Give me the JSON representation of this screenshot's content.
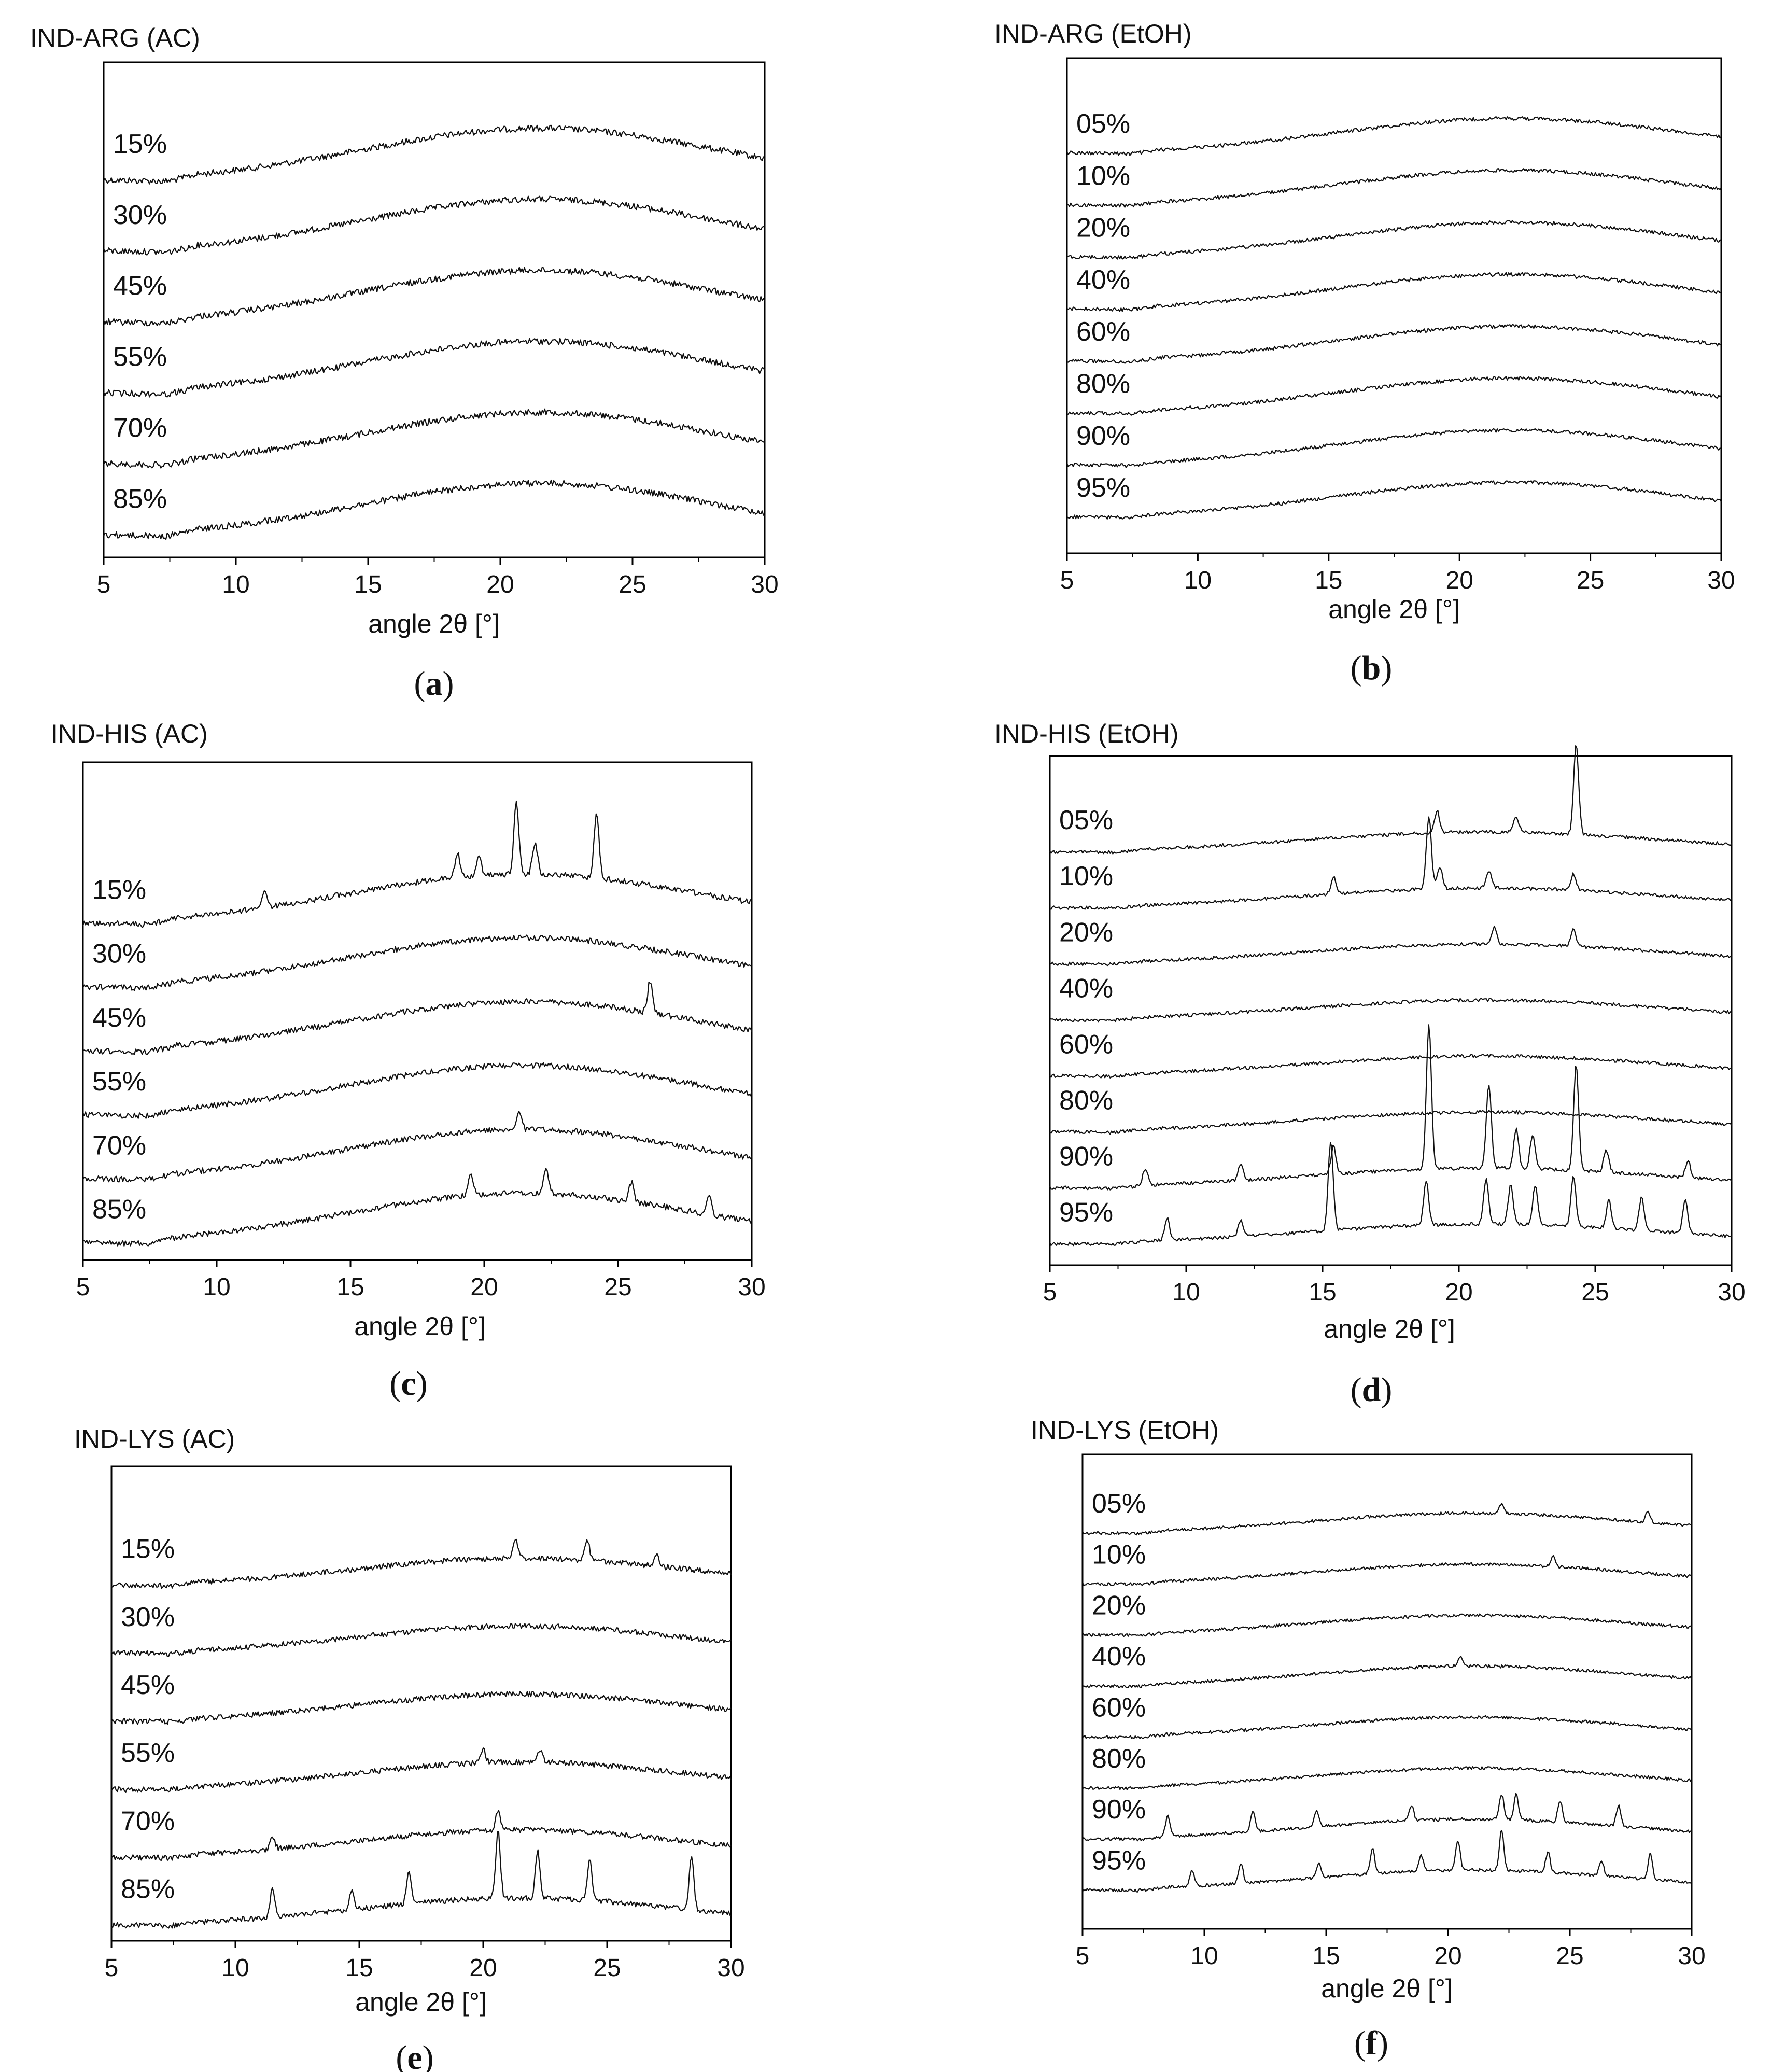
{
  "chart_data": [
    {
      "type": "line",
      "panel": "a",
      "caption": "(a)",
      "caption_letter": "a",
      "title": "IND-ARG (AC)",
      "xlabel": "angle 2θ [°]",
      "ylabel": "",
      "xlim": [
        5,
        30
      ],
      "xticks": [
        "5",
        "10",
        "15",
        "20",
        "25",
        "30"
      ],
      "curve_peak_2theta": 21.5,
      "series": [
        {
          "name": "15%",
          "peaks": []
        },
        {
          "name": "30%",
          "peaks": []
        },
        {
          "name": "45%",
          "peaks": []
        },
        {
          "name": "55%",
          "peaks": []
        },
        {
          "name": "70%",
          "peaks": []
        },
        {
          "name": "85%",
          "peaks": []
        }
      ]
    },
    {
      "type": "line",
      "panel": "b",
      "caption": "(b)",
      "caption_letter": "b",
      "title": "IND-ARG (EtOH)",
      "xlabel": "angle 2θ [°]",
      "ylabel": "",
      "xlim": [
        5,
        30
      ],
      "xticks": [
        "5",
        "10",
        "15",
        "20",
        "25",
        "30"
      ],
      "curve_peak_2theta": 22,
      "series": [
        {
          "name": "05%",
          "peaks": []
        },
        {
          "name": "10%",
          "peaks": []
        },
        {
          "name": "20%",
          "peaks": []
        },
        {
          "name": "40%",
          "peaks": []
        },
        {
          "name": "60%",
          "peaks": []
        },
        {
          "name": "80%",
          "peaks": []
        },
        {
          "name": "90%",
          "peaks": []
        },
        {
          "name": "95%",
          "peaks": []
        }
      ]
    },
    {
      "type": "line",
      "panel": "c",
      "caption": "(c)",
      "caption_letter": "c",
      "title": "IND-HIS (AC)",
      "xlabel": "angle 2θ [°]",
      "ylabel": "",
      "xlim": [
        5,
        30
      ],
      "xticks": [
        "5",
        "10",
        "15",
        "20",
        "25",
        "30"
      ],
      "curve_peak_2theta": 21.5,
      "series": [
        {
          "name": "15%",
          "peaks": [
            [
              11.8,
              0.3
            ],
            [
              19.0,
              0.4
            ],
            [
              19.8,
              0.3
            ],
            [
              21.2,
              1.1
            ],
            [
              21.9,
              0.5
            ],
            [
              24.2,
              1.0
            ]
          ]
        },
        {
          "name": "30%",
          "peaks": []
        },
        {
          "name": "45%",
          "peaks": [
            [
              26.2,
              0.5
            ]
          ]
        },
        {
          "name": "55%",
          "peaks": []
        },
        {
          "name": "70%",
          "peaks": [
            [
              21.3,
              0.3
            ]
          ]
        },
        {
          "name": "85%",
          "peaks": [
            [
              19.5,
              0.3
            ],
            [
              22.3,
              0.4
            ],
            [
              25.5,
              0.3
            ],
            [
              28.4,
              0.3
            ]
          ]
        }
      ]
    },
    {
      "type": "line",
      "panel": "d",
      "caption": "(d)",
      "caption_letter": "d",
      "title": "IND-HIS (EtOH)",
      "xlabel": "angle 2θ [°]",
      "ylabel": "",
      "xlim": [
        5,
        30
      ],
      "xticks": [
        "5",
        "10",
        "15",
        "20",
        "25",
        "30"
      ],
      "curve_peak_2theta": 21,
      "series": [
        {
          "name": "05%",
          "peaks": [
            [
              19.2,
              0.4
            ],
            [
              22.1,
              0.3
            ],
            [
              24.3,
              1.6
            ]
          ]
        },
        {
          "name": "10%",
          "peaks": [
            [
              15.4,
              0.3
            ],
            [
              18.9,
              1.3
            ],
            [
              19.3,
              0.4
            ],
            [
              21.1,
              0.3
            ],
            [
              24.2,
              0.3
            ]
          ]
        },
        {
          "name": "20%",
          "peaks": [
            [
              21.3,
              0.3
            ],
            [
              24.2,
              0.3
            ]
          ]
        },
        {
          "name": "40%",
          "peaks": []
        },
        {
          "name": "60%",
          "peaks": []
        },
        {
          "name": "80%",
          "peaks": []
        },
        {
          "name": "90%",
          "peaks": [
            [
              8.5,
              0.3
            ],
            [
              12.0,
              0.3
            ],
            [
              15.4,
              0.5
            ],
            [
              18.9,
              2.6
            ],
            [
              21.1,
              1.5
            ],
            [
              22.1,
              0.7
            ],
            [
              22.7,
              0.6
            ],
            [
              24.3,
              1.9
            ],
            [
              25.4,
              0.4
            ],
            [
              28.4,
              0.3
            ]
          ]
        },
        {
          "name": "95%",
          "peaks": [
            [
              9.3,
              0.4
            ],
            [
              12.0,
              0.3
            ],
            [
              15.3,
              1.6
            ],
            [
              18.8,
              0.8
            ],
            [
              21.0,
              0.8
            ],
            [
              21.9,
              0.7
            ],
            [
              22.8,
              0.7
            ],
            [
              24.2,
              0.9
            ],
            [
              25.5,
              0.5
            ],
            [
              26.7,
              0.6
            ],
            [
              28.3,
              0.6
            ]
          ]
        }
      ]
    },
    {
      "type": "line",
      "panel": "e",
      "caption": "(e)",
      "caption_letter": "e",
      "title": "IND-LYS (AC)",
      "xlabel": "angle 2θ [°]",
      "ylabel": "",
      "xlim": [
        5,
        30
      ],
      "xticks": [
        "5",
        "10",
        "15",
        "20",
        "25",
        "30"
      ],
      "curve_peak_2theta": 21.5,
      "series": [
        {
          "name": "15%",
          "peaks": [
            [
              21.3,
              0.3
            ],
            [
              24.2,
              0.3
            ],
            [
              27.0,
              0.2
            ]
          ]
        },
        {
          "name": "30%",
          "peaks": []
        },
        {
          "name": "45%",
          "peaks": []
        },
        {
          "name": "55%",
          "peaks": [
            [
              20.0,
              0.2
            ],
            [
              22.3,
              0.2
            ]
          ]
        },
        {
          "name": "70%",
          "peaks": [
            [
              11.5,
              0.2
            ],
            [
              20.6,
              0.3
            ]
          ]
        },
        {
          "name": "85%",
          "peaks": [
            [
              11.5,
              0.4
            ],
            [
              14.7,
              0.3
            ],
            [
              17.0,
              0.5
            ],
            [
              20.6,
              1.0
            ],
            [
              22.2,
              0.7
            ],
            [
              24.3,
              0.6
            ],
            [
              28.4,
              0.8
            ]
          ]
        }
      ]
    },
    {
      "type": "line",
      "panel": "f",
      "caption": "(f)",
      "caption_letter": "f",
      "title": "IND-LYS (EtOH)",
      "xlabel": "angle 2θ [°]",
      "ylabel": "",
      "xlim": [
        5,
        30
      ],
      "xticks": [
        "5",
        "10",
        "15",
        "20",
        "25",
        "30"
      ],
      "curve_peak_2theta": 21,
      "series": [
        {
          "name": "05%",
          "peaks": [
            [
              22.2,
              0.2
            ],
            [
              28.2,
              0.2
            ]
          ]
        },
        {
          "name": "10%",
          "peaks": [
            [
              24.3,
              0.2
            ]
          ]
        },
        {
          "name": "20%",
          "peaks": []
        },
        {
          "name": "40%",
          "peaks": [
            [
              20.5,
              0.2
            ]
          ]
        },
        {
          "name": "60%",
          "peaks": []
        },
        {
          "name": "80%",
          "peaks": []
        },
        {
          "name": "90%",
          "peaks": [
            [
              8.5,
              0.4
            ],
            [
              12.0,
              0.4
            ],
            [
              14.6,
              0.3
            ],
            [
              18.5,
              0.3
            ],
            [
              22.2,
              0.5
            ],
            [
              22.8,
              0.5
            ],
            [
              24.6,
              0.4
            ],
            [
              27.0,
              0.4
            ]
          ]
        },
        {
          "name": "95%",
          "peaks": [
            [
              9.5,
              0.3
            ],
            [
              11.5,
              0.4
            ],
            [
              14.7,
              0.3
            ],
            [
              16.9,
              0.5
            ],
            [
              18.9,
              0.3
            ],
            [
              20.4,
              0.6
            ],
            [
              22.2,
              0.8
            ],
            [
              24.1,
              0.4
            ],
            [
              26.3,
              0.3
            ],
            [
              28.3,
              0.5
            ]
          ]
        }
      ]
    }
  ]
}
